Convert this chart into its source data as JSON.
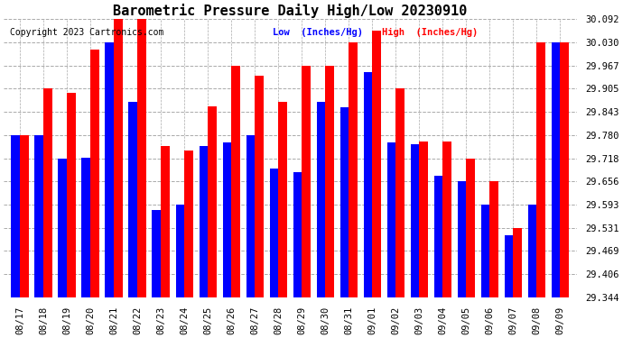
{
  "title": "Barometric Pressure Daily High/Low 20230910",
  "copyright": "Copyright 2023 Cartronics.com",
  "legend_low": "Low  (Inches/Hg)",
  "legend_high": "High  (Inches/Hg)",
  "background_color": "#ffffff",
  "plot_bg_color": "#ffffff",
  "grid_color": "#aaaaaa",
  "bar_color_low": "#0000ff",
  "bar_color_high": "#ff0000",
  "title_color": "#000000",
  "copyright_color": "#000000",
  "legend_low_color": "#0000ff",
  "legend_high_color": "#ff0000",
  "ylim_min": 29.344,
  "ylim_max": 30.092,
  "yticks": [
    29.344,
    29.406,
    29.469,
    29.531,
    29.593,
    29.656,
    29.718,
    29.78,
    29.843,
    29.905,
    29.967,
    30.03,
    30.092
  ],
  "dates": [
    "08/17",
    "08/18",
    "08/19",
    "08/20",
    "08/21",
    "08/22",
    "08/23",
    "08/24",
    "08/25",
    "08/26",
    "08/27",
    "08/28",
    "08/29",
    "08/30",
    "08/31",
    "09/01",
    "09/02",
    "09/03",
    "09/04",
    "09/05",
    "09/06",
    "09/07",
    "09/08",
    "09/09"
  ],
  "low_values": [
    29.78,
    29.78,
    29.718,
    29.72,
    30.03,
    29.87,
    29.58,
    29.593,
    29.75,
    29.76,
    29.78,
    29.69,
    29.68,
    29.87,
    29.855,
    29.95,
    29.76,
    29.755,
    29.67,
    29.656,
    29.593,
    29.51,
    29.593,
    30.03
  ],
  "high_values": [
    29.78,
    29.905,
    29.895,
    30.01,
    30.092,
    30.092,
    29.75,
    29.74,
    29.858,
    29.967,
    29.94,
    29.87,
    29.967,
    29.967,
    30.03,
    30.062,
    29.905,
    29.762,
    29.762,
    29.718,
    29.656,
    29.531,
    30.03,
    30.03
  ],
  "title_fontsize": 11,
  "tick_fontsize": 7.5,
  "bar_width": 0.38
}
